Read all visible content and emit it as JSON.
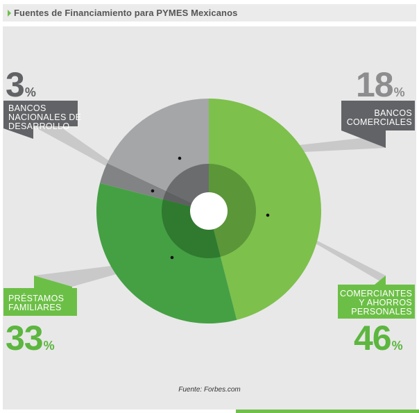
{
  "header": {
    "title": "Fuentes de Financiamiento para PYMES Mexicanos"
  },
  "chart_data": {
    "type": "pie",
    "title": "Fuentes de Financiamiento para PYMES Mexicanos",
    "unit": "%",
    "slices": [
      {
        "key": "comerciantes",
        "label": "COMERCIANTES\nY AHORROS\nPERSONALES",
        "value": 46,
        "color": "#7dc04c"
      },
      {
        "key": "prestamos",
        "label": "PRÉSTAMOS\nFAMILIARES",
        "value": 33,
        "color": "#45a044"
      },
      {
        "key": "banca_desarrollo",
        "label": "BANCOS\nNACIONALES DE\nDESARROLLO",
        "value": 3,
        "color": "#828384"
      },
      {
        "key": "bancos_comerciales",
        "label": "BANCOS\nCOMERCIALES",
        "value": 18,
        "color": "#a5a6a8"
      }
    ]
  },
  "callouts": {
    "bancos_desarrollo": {
      "num": "3",
      "sym": "%",
      "l1": "BANCOS",
      "l2": "NACIONALES DE",
      "l3": "DESARROLLO"
    },
    "bancos_comerciales": {
      "num": "18",
      "sym": "%",
      "l1": "BANCOS",
      "l2": "COMERCIALES"
    },
    "prestamos": {
      "num": "33",
      "sym": "%",
      "l1": "PRÉSTAMOS",
      "l2": "FAMILIARES"
    },
    "comerciantes": {
      "num": "46",
      "sym": "%",
      "l1": "COMERCIANTES",
      "l2": "Y AHORROS",
      "l3": "PERSONALES"
    }
  },
  "source": "Fuente: Forbes.com",
  "colors": {
    "green_text": "#5cb63f",
    "gray_text": "#8d8d8f",
    "gray_box": "#626366",
    "green_box": "#6cbf46"
  }
}
